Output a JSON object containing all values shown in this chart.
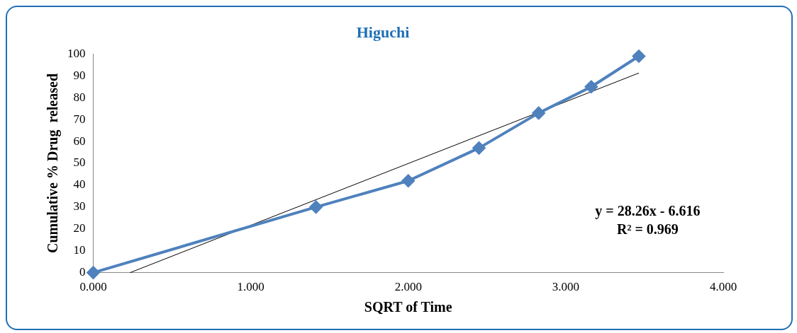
{
  "chart_data": {
    "type": "line",
    "title": "Higuchi",
    "xlabel": "SQRT of Time",
    "ylabel": "Cumulative % Drug  released",
    "series": [
      {
        "type": "line",
        "color": "#4f81bd",
        "marker": "diamond",
        "x": [
          0,
          1.414,
          2.0,
          2.449,
          2.828,
          3.162,
          3.464
        ],
        "values": [
          0,
          30,
          42,
          57,
          73,
          85,
          99
        ]
      },
      {
        "type": "line",
        "color": "#000000",
        "marker": "none",
        "x": [
          0.234,
          3.464
        ],
        "values": [
          0,
          91.3
        ]
      }
    ],
    "xlim": [
      0,
      4
    ],
    "xticks": [
      {
        "value": 0,
        "label": "0.000"
      },
      {
        "value": 1,
        "label": "1.000"
      },
      {
        "value": 2,
        "label": "2.000"
      },
      {
        "value": 3,
        "label": "3.000"
      },
      {
        "value": 4,
        "label": "4.000"
      }
    ],
    "ylim": [
      0,
      100
    ],
    "yticks": [
      0,
      10,
      20,
      30,
      40,
      50,
      60,
      70,
      80,
      90,
      100
    ],
    "annotations": [
      "y = 28.26x - 6.616",
      "R² = 0.969"
    ],
    "grid": false,
    "legend": false
  }
}
